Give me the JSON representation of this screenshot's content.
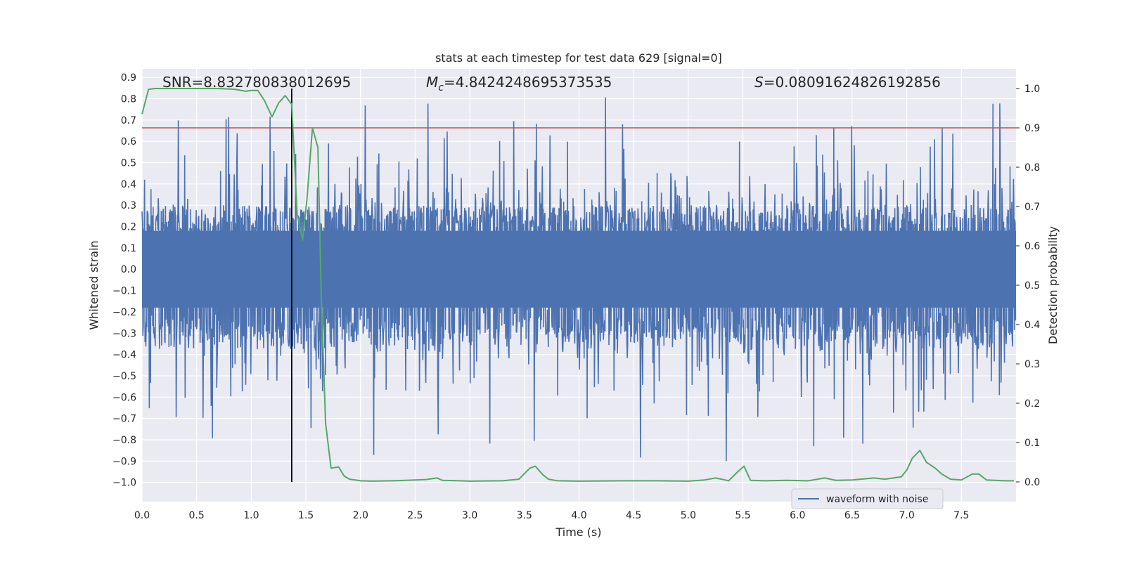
{
  "chart_data": {
    "type": "line",
    "title": "stats at each timestep for test data 629 [signal=0]",
    "xlabel": "Time (s)",
    "ylabel": "Whitened strain",
    "y2label": "Detection probability",
    "xlim": [
      0.0,
      8.0
    ],
    "ylim": [
      -1.09,
      0.94
    ],
    "y2lim": [
      -0.05,
      1.05
    ],
    "xticks": [
      "0.0",
      "0.5",
      "1.0",
      "1.5",
      "2.0",
      "2.5",
      "3.0",
      "3.5",
      "4.0",
      "4.5",
      "5.0",
      "5.5",
      "6.0",
      "6.5",
      "7.0",
      "7.5"
    ],
    "yticks": [
      "0.9",
      "0.8",
      "0.7",
      "0.6",
      "0.5",
      "0.4",
      "0.3",
      "0.2",
      "0.1",
      "0.0",
      "−0.1",
      "−0.2",
      "−0.3",
      "−0.4",
      "−0.5",
      "−0.6",
      "−0.7",
      "−0.8",
      "−0.9",
      "−1.0"
    ],
    "y2ticks": [
      "1.0",
      "0.9",
      "0.8",
      "0.7",
      "0.6",
      "0.5",
      "0.4",
      "0.3",
      "0.2",
      "0.1",
      "0.0"
    ],
    "annotations": {
      "snr": "SNR=8.832780838012695",
      "mc": "=4.8424248695373535",
      "s": "=0.08091624826192856"
    },
    "threshold": 0.9,
    "marker_time": 1.37,
    "legend": [
      {
        "label": "waveform with noise",
        "color": "#4c72b0"
      }
    ],
    "series": [
      {
        "name": "waveform with noise",
        "color": "#4c72b0",
        "dt": 0.00390625,
        "seed": 629,
        "core_amplitude": 0.3,
        "peak_range": [
          0.3,
          0.88
        ],
        "description_ref": "noise"
      },
      {
        "name": "detection probability",
        "color": "#55a868",
        "x": [
          0.0,
          0.06,
          0.12,
          0.25,
          0.4,
          0.55,
          0.7,
          0.85,
          0.95,
          1.0,
          1.06,
          1.12,
          1.19,
          1.25,
          1.31,
          1.37,
          1.42,
          1.47,
          1.51,
          1.56,
          1.61,
          1.64,
          1.68,
          1.73,
          1.8,
          1.85,
          1.9,
          2.0,
          2.1,
          2.3,
          2.5,
          2.6,
          2.7,
          2.75,
          2.9,
          3.0,
          3.3,
          3.45,
          3.55,
          3.6,
          3.67,
          3.72,
          3.8,
          4.0,
          4.5,
          4.7,
          5.0,
          5.15,
          5.25,
          5.37,
          5.45,
          5.51,
          5.57,
          5.7,
          5.9,
          6.1,
          6.25,
          6.35,
          6.5,
          6.7,
          6.8,
          6.95,
          7.0,
          7.05,
          7.12,
          7.18,
          7.26,
          7.32,
          7.4,
          7.5,
          7.6,
          7.66,
          7.73,
          7.9,
          7.98
        ],
        "values": [
          0.935,
          0.998,
          1.0,
          1.0,
          1.0,
          1.0,
          1.0,
          0.998,
          0.993,
          0.995,
          0.995,
          0.97,
          0.928,
          0.963,
          0.982,
          0.96,
          0.68,
          0.615,
          0.72,
          0.9,
          0.85,
          0.48,
          0.15,
          0.035,
          0.038,
          0.015,
          0.007,
          0.003,
          0.002,
          0.003,
          0.005,
          0.006,
          0.01,
          0.004,
          0.003,
          0.002,
          0.003,
          0.007,
          0.035,
          0.04,
          0.018,
          0.007,
          0.003,
          0.002,
          0.003,
          0.003,
          0.002,
          0.005,
          0.01,
          0.003,
          0.025,
          0.04,
          0.004,
          0.003,
          0.004,
          0.003,
          0.01,
          0.004,
          0.005,
          0.01,
          0.007,
          0.013,
          0.03,
          0.06,
          0.08,
          0.05,
          0.035,
          0.02,
          0.007,
          0.005,
          0.02,
          0.02,
          0.005,
          0.003,
          0.003
        ]
      }
    ]
  }
}
